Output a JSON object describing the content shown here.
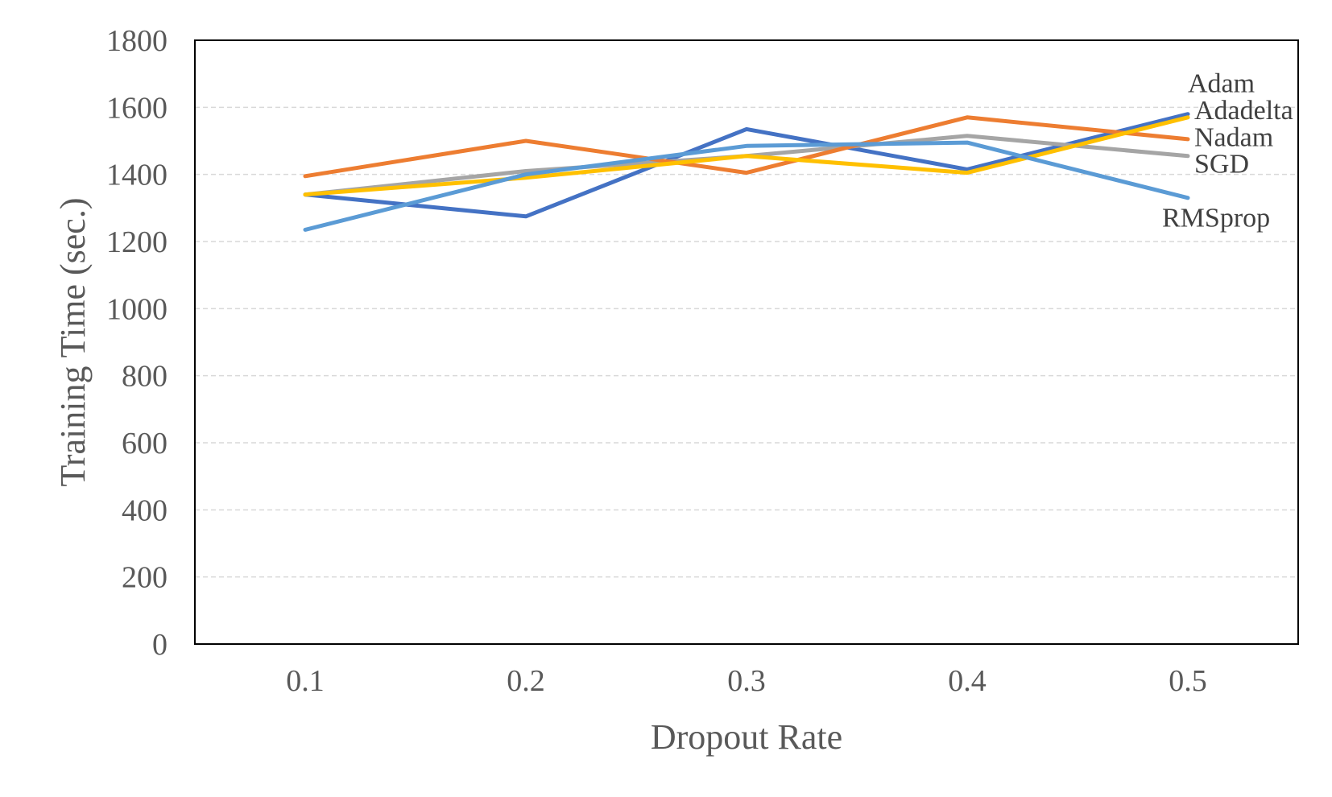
{
  "chart_data": {
    "type": "line",
    "title": "",
    "xlabel": "Dropout Rate",
    "ylabel": "Training Time (sec.)",
    "categories": [
      "0.1",
      "0.2",
      "0.3",
      "0.4",
      "0.5"
    ],
    "ylim": [
      0,
      1800
    ],
    "yticks": [
      "0",
      "200",
      "400",
      "600",
      "800",
      "1000",
      "1200",
      "1400",
      "1600",
      "1800"
    ],
    "grid": true,
    "legend": "inline labels at right end of each line",
    "series": [
      {
        "name": "Adam",
        "color": "#4472C4",
        "values": [
          1340,
          1275,
          1535,
          1415,
          1580
        ]
      },
      {
        "name": "Adadelta",
        "color": "#FFC000",
        "values": [
          1340,
          1390,
          1455,
          1405,
          1570
        ]
      },
      {
        "name": "Nadam",
        "color": "#ED7D31",
        "values": [
          1395,
          1500,
          1405,
          1570,
          1505
        ]
      },
      {
        "name": "SGD",
        "color": "#A5A5A5",
        "values": [
          1340,
          1410,
          1455,
          1515,
          1455
        ]
      },
      {
        "name": "RMSprop",
        "color": "#5B9BD5",
        "values": [
          1235,
          1400,
          1485,
          1495,
          1330
        ]
      }
    ]
  }
}
